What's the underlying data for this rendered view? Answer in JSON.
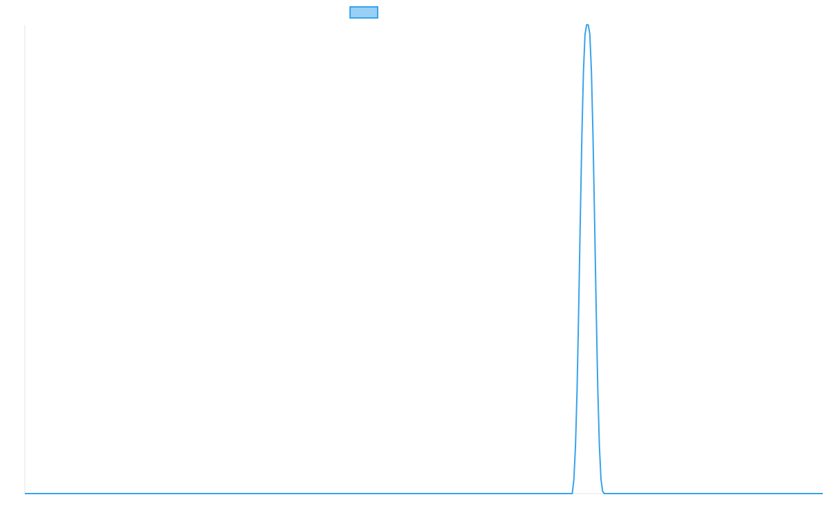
{
  "chart_data": {
    "type": "line",
    "title": "",
    "xlabel": "",
    "ylabel": "",
    "grid": false,
    "legend_position": "top-center",
    "xlim": [
      0,
      1000
    ],
    "ylim": [
      0,
      1
    ],
    "colors": {
      "line": "#36a2eb",
      "legend_fill": "#9ad0f5",
      "axis": "#e6e6e6"
    },
    "series": [
      {
        "label_printed": "",
        "x": [
          0,
          686,
          688,
          690,
          692,
          694,
          696,
          698,
          700,
          702,
          704,
          705,
          706,
          708,
          710,
          712,
          714,
          716,
          718,
          720,
          722,
          724,
          726,
          1000
        ],
        "y": [
          0,
          0,
          0.03,
          0.1,
          0.22,
          0.39,
          0.58,
          0.76,
          0.9,
          0.98,
          1.0,
          1.0,
          1.0,
          0.98,
          0.9,
          0.76,
          0.58,
          0.39,
          0.22,
          0.1,
          0.03,
          0.005,
          0,
          0
        ]
      }
    ]
  }
}
